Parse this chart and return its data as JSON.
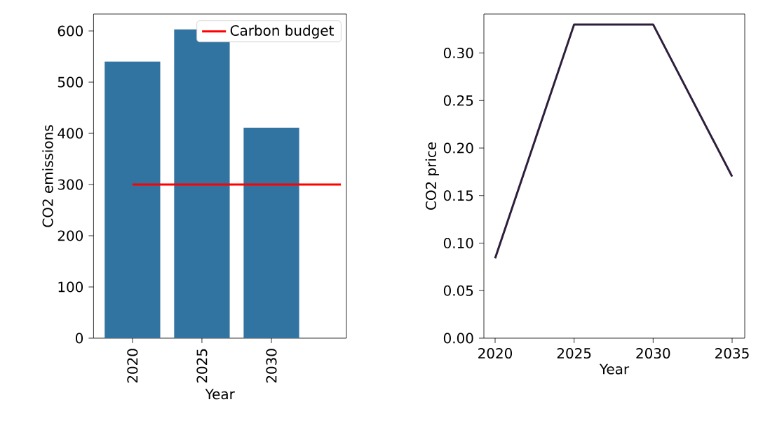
{
  "chart_data": [
    {
      "type": "bar",
      "categories": [
        "2020",
        "2025",
        "2030",
        null
      ],
      "xlabel": "Year",
      "ylabel": "CO2 emissions",
      "series": [
        {
          "type": "bar",
          "color": "#3274a1",
          "values": [
            540,
            603,
            411,
            null
          ]
        }
      ],
      "ref_lines": [
        {
          "axis": "y",
          "value": 300,
          "label": "Carbon budget",
          "color": "#ff0000"
        }
      ],
      "ylim": [
        0,
        633
      ],
      "yticks": [
        0,
        100,
        200,
        300,
        400,
        500,
        600
      ],
      "legend": "top right",
      "marker": "none"
    },
    {
      "type": "line",
      "x": [
        2020,
        2025,
        2030,
        2035
      ],
      "xlabel": "Year",
      "ylabel": "CO2 price",
      "series": [
        {
          "color": "#2e1e3b",
          "values": [
            0.084,
            0.33,
            0.33,
            0.17
          ]
        }
      ],
      "xlim": [
        2019.29,
        2035.8
      ],
      "ylim": [
        0,
        0.341
      ],
      "xticks": [
        2020,
        2025,
        2030,
        2035
      ],
      "yticks": [
        {
          "value": 0,
          "label": "0.00"
        },
        {
          "value": 0.05,
          "label": "0.05"
        },
        {
          "value": 0.1,
          "label": "0.10"
        },
        {
          "value": 0.15,
          "label": "0.15"
        },
        {
          "value": 0.2,
          "label": "0.20"
        },
        {
          "value": 0.25,
          "label": "0.25"
        },
        {
          "value": 0.3,
          "label": "0.30"
        }
      ],
      "legend": false,
      "marker": "none"
    }
  ]
}
